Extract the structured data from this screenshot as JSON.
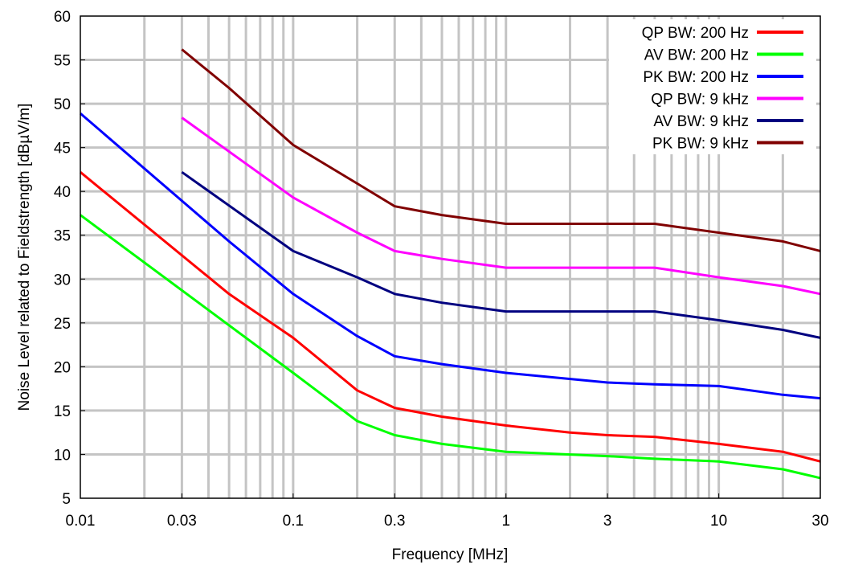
{
  "chart_data": {
    "type": "line",
    "title": "",
    "xlabel": "Frequency [MHz]",
    "ylabel": "Noise Level related to Fieldstrength [dBµV/m]",
    "xscale": "log",
    "xlim": [
      0.01,
      30
    ],
    "ylim": [
      5,
      60
    ],
    "grid": true,
    "legend_position": "top-right",
    "x_ticks": [
      {
        "value": 0.01,
        "label": "0.01"
      },
      {
        "value": 0.03,
        "label": "0.03"
      },
      {
        "value": 0.1,
        "label": "0.1"
      },
      {
        "value": 0.3,
        "label": "0.3"
      },
      {
        "value": 1,
        "label": "1"
      },
      {
        "value": 3,
        "label": "3"
      },
      {
        "value": 10,
        "label": "10"
      },
      {
        "value": 30,
        "label": "30"
      }
    ],
    "y_ticks": [
      {
        "value": 5,
        "label": "5"
      },
      {
        "value": 10,
        "label": "10"
      },
      {
        "value": 15,
        "label": "15"
      },
      {
        "value": 20,
        "label": "20"
      },
      {
        "value": 25,
        "label": "25"
      },
      {
        "value": 30,
        "label": "30"
      },
      {
        "value": 35,
        "label": "35"
      },
      {
        "value": 40,
        "label": "40"
      },
      {
        "value": 45,
        "label": "45"
      },
      {
        "value": 50,
        "label": "50"
      },
      {
        "value": 55,
        "label": "55"
      },
      {
        "value": 60,
        "label": "60"
      }
    ],
    "series": [
      {
        "name": "QP BW: 200 Hz",
        "color": "#ff0000",
        "x": [
          0.01,
          0.05,
          0.1,
          0.2,
          0.3,
          0.5,
          1,
          2,
          3,
          5,
          10,
          20,
          30
        ],
        "y": [
          42.2,
          28.3,
          23.3,
          17.3,
          15.3,
          14.3,
          13.3,
          12.5,
          12.2,
          12.0,
          11.2,
          10.3,
          9.2
        ]
      },
      {
        "name": "AV BW: 200 Hz",
        "color": "#00ff00",
        "x": [
          0.01,
          0.1,
          0.2,
          0.3,
          0.5,
          1,
          3,
          5,
          10,
          20,
          30
        ],
        "y": [
          37.3,
          19.3,
          13.8,
          12.2,
          11.2,
          10.3,
          9.8,
          9.5,
          9.2,
          8.3,
          7.3
        ]
      },
      {
        "name": "PK BW: 200 Hz",
        "color": "#0000ff",
        "x": [
          0.01,
          0.05,
          0.1,
          0.2,
          0.3,
          0.5,
          1,
          3,
          5,
          10,
          20,
          30
        ],
        "y": [
          48.9,
          34.3,
          28.3,
          23.5,
          21.2,
          20.3,
          19.3,
          18.2,
          18.0,
          17.8,
          16.8,
          16.4
        ]
      },
      {
        "name": "QP BW: 9 kHz",
        "color": "#ff00ff",
        "x": [
          0.03,
          0.1,
          0.2,
          0.3,
          0.5,
          1,
          3,
          5,
          10,
          20,
          30
        ],
        "y": [
          48.4,
          39.3,
          35.3,
          33.2,
          32.3,
          31.3,
          31.3,
          31.3,
          30.2,
          29.2,
          28.3
        ]
      },
      {
        "name": "AV BW: 9 kHz",
        "color": "#000080",
        "x": [
          0.03,
          0.1,
          0.2,
          0.3,
          0.5,
          1,
          3,
          5,
          10,
          20,
          30
        ],
        "y": [
          42.2,
          33.2,
          30.2,
          28.3,
          27.3,
          26.3,
          26.3,
          26.3,
          25.3,
          24.2,
          23.3
        ]
      },
      {
        "name": "PK BW: 9 kHz",
        "color": "#800000",
        "x": [
          0.03,
          0.05,
          0.1,
          0.2,
          0.3,
          0.5,
          1,
          3,
          5,
          10,
          20,
          30
        ],
        "y": [
          56.2,
          51.8,
          45.3,
          40.9,
          38.3,
          37.3,
          36.3,
          36.3,
          36.3,
          35.3,
          34.3,
          33.2
        ]
      }
    ]
  }
}
